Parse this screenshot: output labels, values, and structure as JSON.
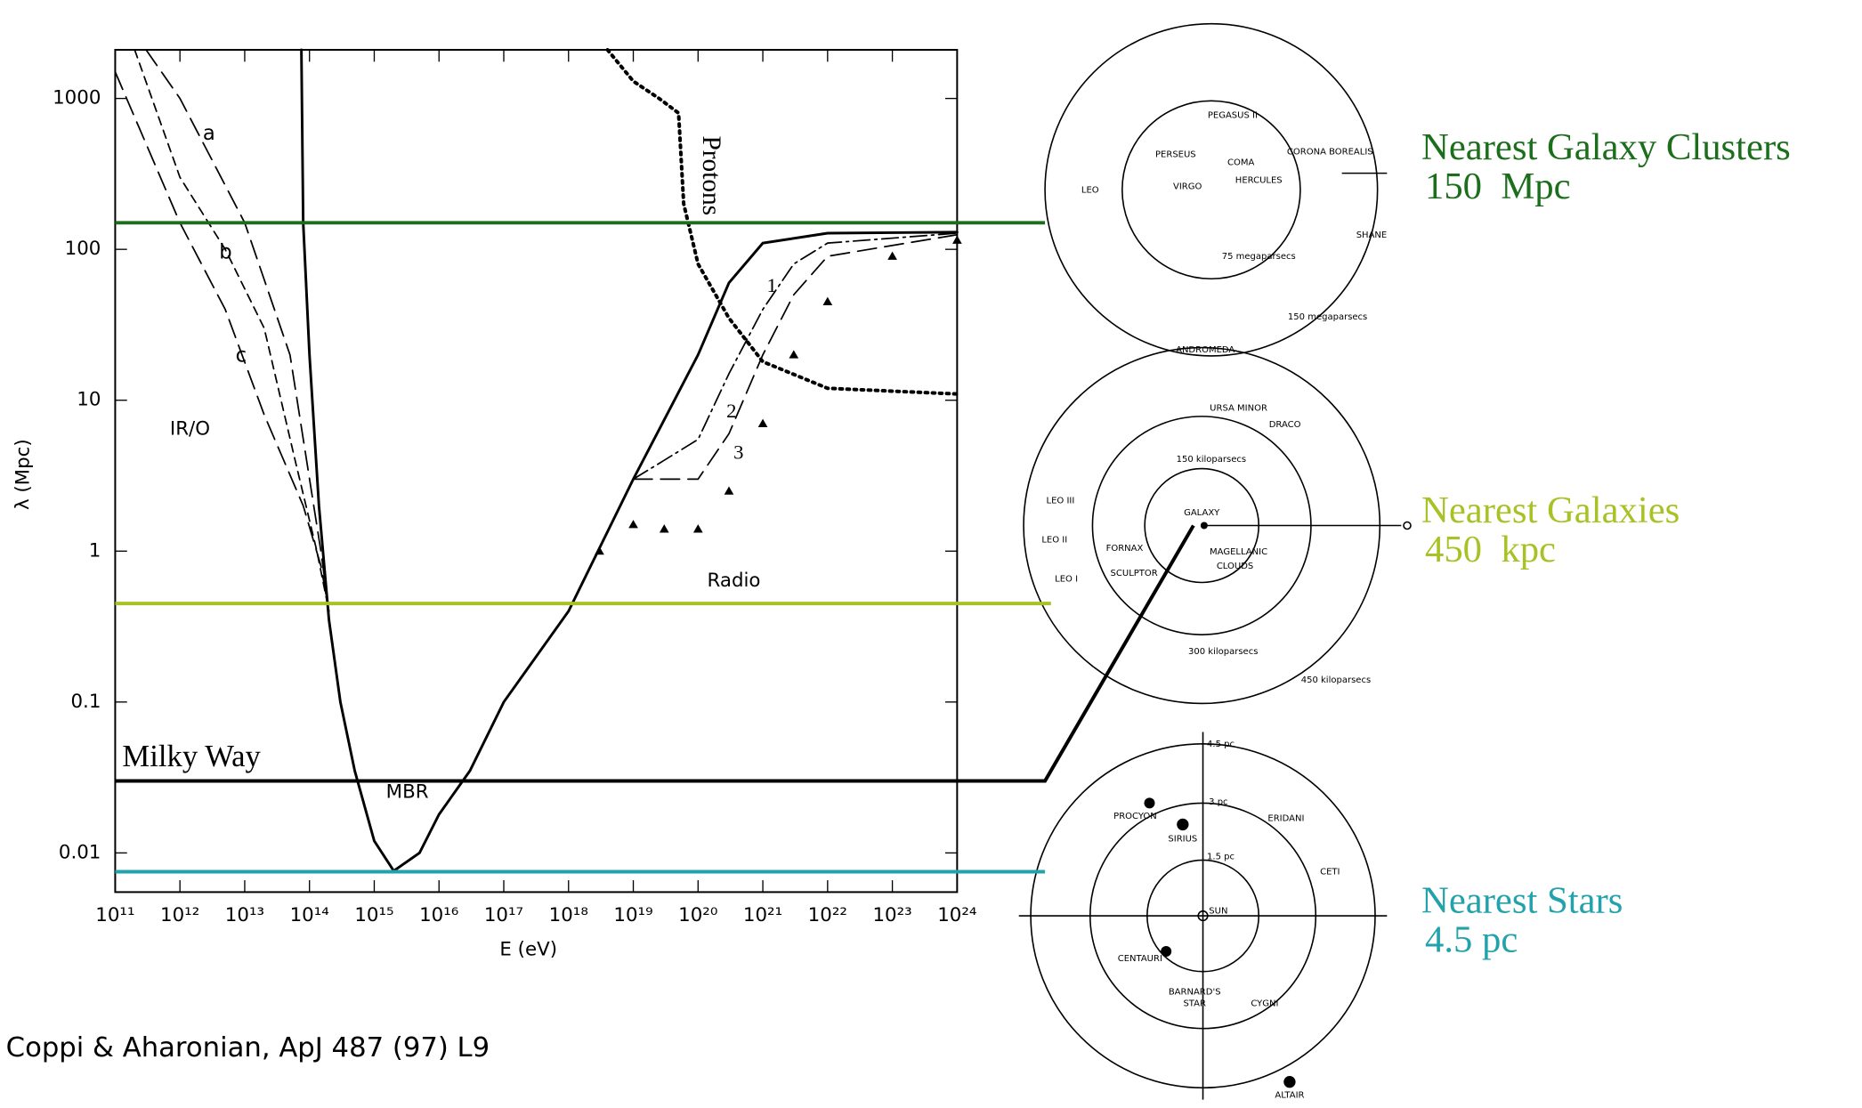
{
  "chart_data": {
    "type": "line",
    "xlabel": "E (eV)",
    "ylabel": "λ (Mpc)",
    "log_x": true,
    "log_y": true,
    "xlim": [
      100000000000.0,
      1e+24
    ],
    "ylim": [
      0.0055,
      2100
    ],
    "xticks": [
      {
        "value": 100000000000.0,
        "label": "10¹¹"
      },
      {
        "value": 1000000000000.0,
        "label": "10¹²"
      },
      {
        "value": 10000000000000.0,
        "label": "10¹³"
      },
      {
        "value": 100000000000000.0,
        "label": "10¹⁴"
      },
      {
        "value": 1000000000000000.0,
        "label": "10¹⁵"
      },
      {
        "value": 1e+16,
        "label": "10¹⁶"
      },
      {
        "value": 1e+17,
        "label": "10¹⁷"
      },
      {
        "value": 1e+18,
        "label": "10¹⁸"
      },
      {
        "value": 1e+19,
        "label": "10¹⁹"
      },
      {
        "value": 1e+20,
        "label": "10²⁰"
      },
      {
        "value": 1e+21,
        "label": "10²¹"
      },
      {
        "value": 1e+22,
        "label": "10²²"
      },
      {
        "value": 1e+23,
        "label": "10²³"
      },
      {
        "value": 1e+24,
        "label": "10²⁴"
      }
    ],
    "yticks": [
      0.01,
      0.1,
      1,
      10,
      100,
      1000
    ],
    "series": [
      {
        "name": "1",
        "color": "#000",
        "style": "solid",
        "x": [
          75000000000000.0,
          80000000000000.0,
          100000000000000.0,
          140000000000000.0,
          200000000000000.0,
          300000000000000.0,
          500000000000000.0,
          1000000000000000.0,
          2000000000000000.0,
          5000000000000000.0,
          1e+16,
          3e+16,
          1e+17,
          1e+18,
          1e+19,
          1e+20,
          3e+20,
          1e+21,
          1e+22,
          1e+24
        ],
        "values": [
          2100,
          150,
          20,
          2,
          0.35,
          0.1,
          0.035,
          0.012,
          0.0076,
          0.01,
          0.018,
          0.035,
          0.1,
          0.4,
          3,
          20,
          60,
          110,
          128,
          130
        ]
      },
      {
        "name": "2",
        "color": "#000",
        "style": "dashdot",
        "x": [
          1e+19,
          3e+19,
          1e+20,
          3e+20,
          1e+21,
          3e+21,
          1e+22,
          1e+24
        ],
        "values": [
          3,
          4,
          5.5,
          15,
          40,
          80,
          110,
          128
        ]
      },
      {
        "name": "3",
        "color": "#000",
        "style": "longdash",
        "x": [
          1e+19,
          3e+19,
          1e+20,
          3e+20,
          1e+21,
          3e+21,
          1e+22,
          1e+24
        ],
        "values": [
          3,
          3,
          3,
          6,
          20,
          50,
          90,
          125
        ]
      },
      {
        "color": "#000",
        "style": "triangles",
        "x": [
          3e+18,
          1e+19,
          3e+19,
          1e+20,
          3e+20,
          1e+21,
          3e+21,
          1e+22,
          1e+23,
          1e+24
        ],
        "values": [
          1,
          1.5,
          1.4,
          1.4,
          2.5,
          7,
          20,
          45,
          90,
          115
        ]
      },
      {
        "name": "a",
        "color": "#000",
        "style": "longdash",
        "x": [
          300000000000.0,
          1000000000000.0,
          10000000000000.0,
          50000000000000.0,
          150000000000000.0,
          200000000000000.0
        ],
        "values": [
          2100,
          1000,
          150,
          20,
          1,
          0.4
        ]
      },
      {
        "name": "b",
        "color": "#000",
        "style": "dash",
        "x": [
          200000000000.0,
          1000000000000.0,
          5000000000000.0,
          20000000000000.0,
          60000000000000.0,
          130000000000000.0,
          200000000000000.0
        ],
        "values": [
          2100,
          300,
          100,
          30,
          4,
          1,
          0.4
        ]
      },
      {
        "name": "c",
        "color": "#000",
        "style": "longdash",
        "x": [
          100000000000.0,
          1000000000000.0,
          5000000000000.0,
          20000000000000.0,
          80000000000000.0,
          150000000000000.0,
          200000000000000.0
        ],
        "values": [
          1500,
          150,
          40,
          8,
          2,
          0.8,
          0.4
        ]
      },
      {
        "name": "Protons",
        "color": "#000",
        "style": "dot",
        "x": [
          4e+18,
          1e+19,
          2.5e+19,
          5e+19,
          6e+19,
          1e+20,
          3e+20,
          1e+21,
          1e+22,
          1e+24
        ],
        "values": [
          2100,
          1300,
          1000,
          800,
          200,
          80,
          35,
          18,
          12,
          11
        ]
      }
    ],
    "annotations": [
      "IR/O",
      "Radio",
      "MBR"
    ],
    "reference_lines": [
      {
        "name": "Nearest Galaxy Clusters",
        "distance": "150  Mpc",
        "value": 150,
        "color": "#1b6e1b"
      },
      {
        "name": "Nearest Galaxies",
        "distance": "450  kpc",
        "value": 0.45,
        "color": "#a6c224"
      },
      {
        "name": "Milky Way",
        "value": 0.03,
        "color": "#000"
      },
      {
        "name": "Nearest Stars",
        "distance": "4.5 pc",
        "value": 0.0075,
        "color": "#22a2aa"
      }
    ],
    "citation": "Coppi & Aharonian, ApJ 487 (97) L9"
  },
  "maps": [
    {
      "labels": [
        "PEGASUS II",
        "PERSEUS",
        "VIRGO",
        "COMA",
        "HERCULES",
        "CORONA BOREALIS",
        "LEO",
        "SHANE",
        "75 megaparsecs",
        "150 megaparsecs"
      ]
    },
    {
      "labels": [
        "ANDROMEDA",
        "URSA MINOR",
        "DRACO",
        "150 kiloparsecs",
        "GALAXY",
        "LEO III",
        "LEO II",
        "LEO I",
        "FORNAX",
        "SCULPTOR",
        "MAGELLANIC",
        "CLOUDS",
        "300 kiloparsecs",
        "450 kiloparsecs"
      ]
    },
    {
      "labels": [
        "4.5 pc",
        "3 pc",
        "1.5 pc",
        "SUN",
        "PROCYON",
        "SIRIUS",
        "ERIDANI",
        "CETI",
        "CENTAURI",
        "BARNARD'S",
        "STAR",
        "CYGNI",
        "ALTAIR"
      ]
    }
  ]
}
